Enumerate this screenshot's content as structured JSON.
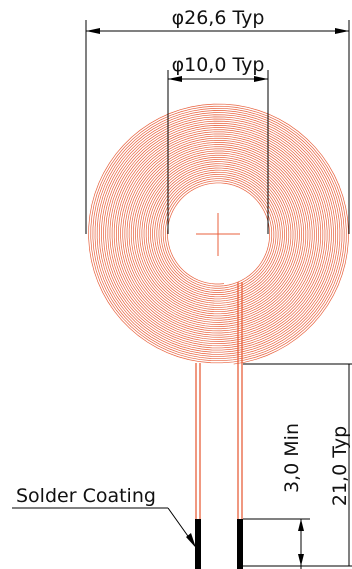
{
  "dimensions": {
    "outer_diameter": "φ26,6 Typ",
    "inner_diameter": "φ10,0 Typ",
    "min_length": "3,0 Min",
    "total_length": "21,0 Typ"
  },
  "callouts": {
    "solder_coating": "Solder Coating"
  },
  "colors": {
    "coil": "#e8603c",
    "center_mark": "#e8603c",
    "lead": "#e8603c",
    "solder": "#000000",
    "dimension_line": "#000000"
  }
}
